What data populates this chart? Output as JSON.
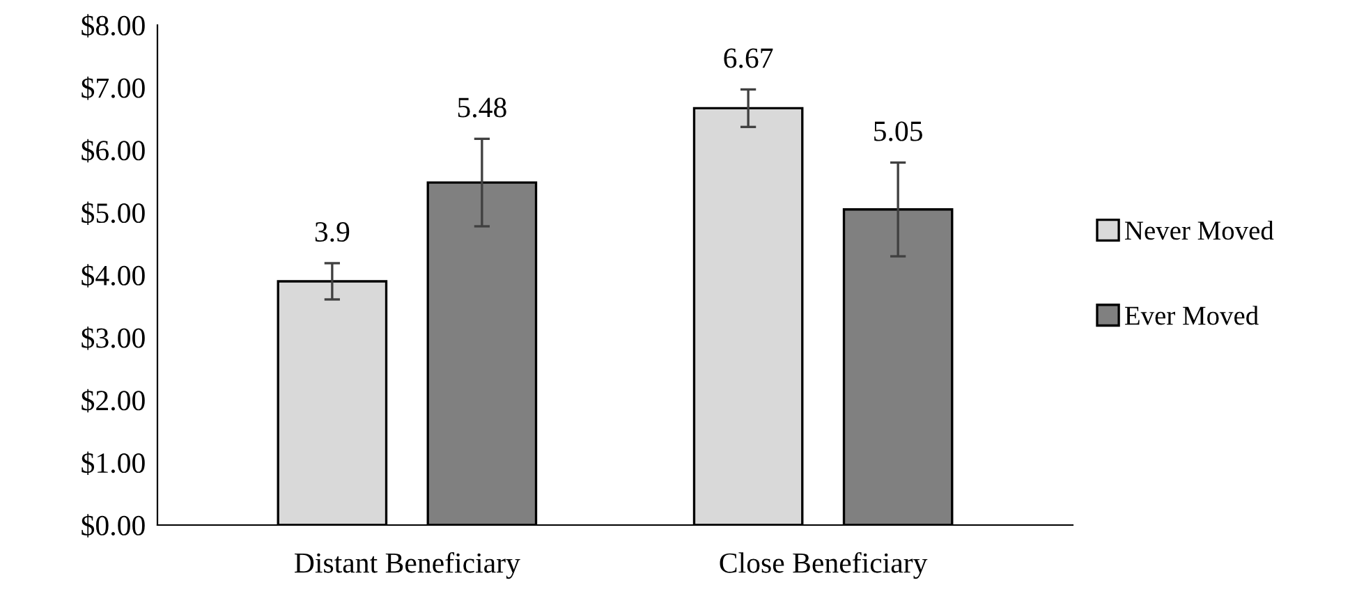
{
  "chart_data": {
    "type": "bar",
    "categories": [
      "Distant Beneficiary",
      "Close Beneficiary"
    ],
    "series": [
      {
        "name": "Never Moved",
        "color": "#d9d9d9",
        "values": [
          3.9,
          6.67
        ],
        "errors": [
          0.29,
          0.3
        ]
      },
      {
        "name": "Ever Moved",
        "color": "#808080",
        "values": [
          5.48,
          5.05
        ],
        "errors": [
          0.7,
          0.75
        ]
      }
    ],
    "ylim": [
      0,
      8
    ],
    "yticks": [
      {
        "value": 0,
        "label": "$0.00"
      },
      {
        "value": 1,
        "label": "$1.00"
      },
      {
        "value": 2,
        "label": "$2.00"
      },
      {
        "value": 3,
        "label": "$3.00"
      },
      {
        "value": 4,
        "label": "$4.00"
      },
      {
        "value": 5,
        "label": "$5.00"
      },
      {
        "value": 6,
        "label": "$6.00"
      },
      {
        "value": 7,
        "label": "$7.00"
      },
      {
        "value": 8,
        "label": "$8.00"
      }
    ],
    "data_labels": true,
    "grid": false,
    "legend": "right"
  }
}
